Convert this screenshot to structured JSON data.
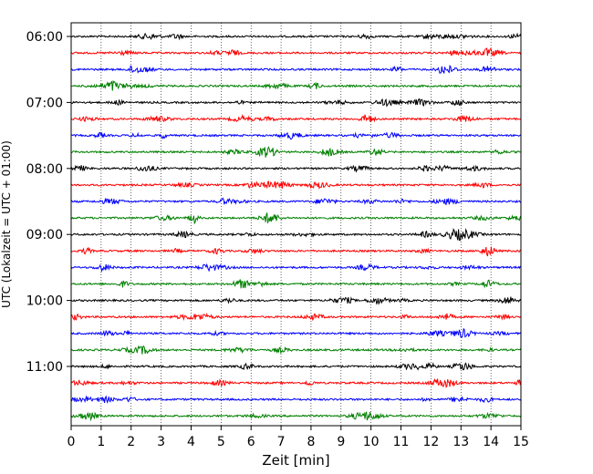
{
  "chart_data": {
    "type": "line",
    "title": "",
    "xlabel": "Zeit  [min]",
    "ylabel": "UTC (Lokalzeit = UTC + 01:00)",
    "xlim": [
      0,
      15
    ],
    "x_ticks": [
      "0",
      "1",
      "2",
      "3",
      "4",
      "5",
      "6",
      "7",
      "8",
      "9",
      "10",
      "11",
      "12",
      "13",
      "14",
      "15"
    ],
    "y_ticks": [
      "06:00",
      "07:00",
      "08:00",
      "09:00",
      "10:00",
      "11:00"
    ],
    "grid_x": true,
    "trace_start": "06:00",
    "trace_interval_min": 15,
    "trace_count": 24,
    "trace_colors": [
      "#000000",
      "#ff0000",
      "#0000ff",
      "#008000"
    ]
  }
}
